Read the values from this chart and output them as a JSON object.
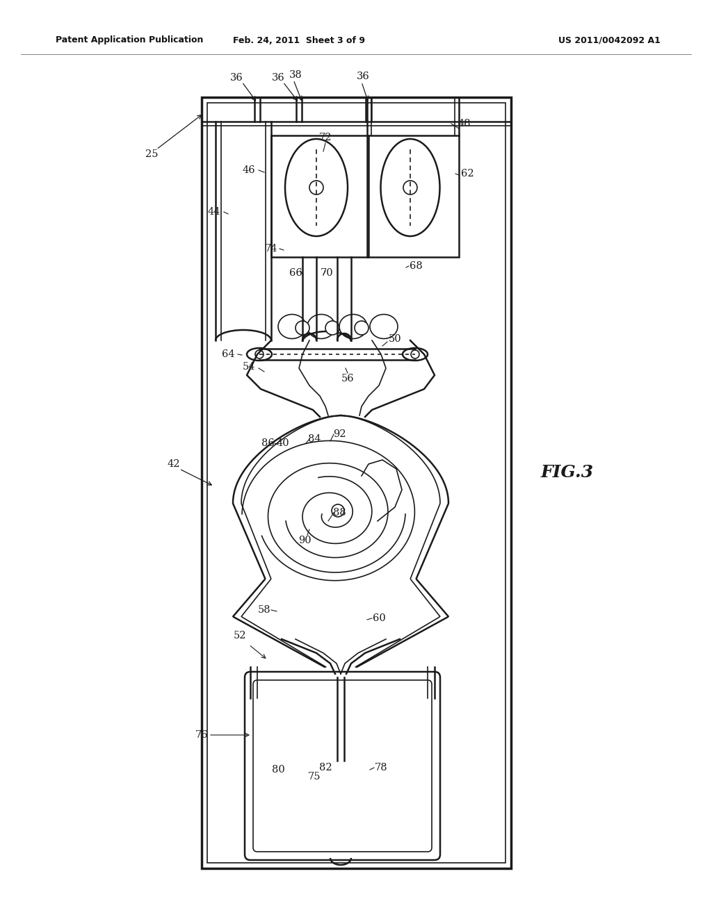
{
  "title_left": "Patent Application Publication",
  "title_mid": "Feb. 24, 2011  Sheet 3 of 9",
  "title_right": "US 2011/0042092 A1",
  "fig_label": "FIG.3",
  "bg_color": "#ffffff",
  "lc": "#1a1a1a"
}
